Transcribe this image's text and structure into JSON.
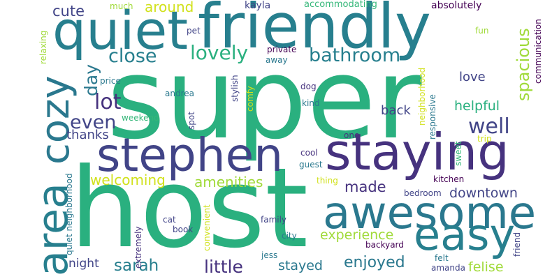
{
  "palette": {
    "background": "#ffffff",
    "green": "#2ab07f",
    "teal": "#277f8e",
    "navy": "#414487",
    "blue": "#2a788e",
    "indigo": "#46327e",
    "lime": "#a0da39",
    "yellow": "#d1e11c",
    "mint": "#35b779",
    "dark": "#440154"
  },
  "words": {
    "super": "super",
    "host": "host",
    "friendly": "friendly",
    "quiet": "quiet",
    "stephen": "stephen",
    "staying": "staying",
    "awesome": "awesome",
    "area": "area",
    "cozy": "cozy",
    "easy": "easy",
    "lovely": "lovely",
    "bathroom": "bathroom",
    "close": "close",
    "lot": "lot",
    "even": "even",
    "well": "well",
    "spacious": "spacious",
    "day": "day",
    "cute": "cute",
    "around": "around",
    "made": "made",
    "amenities": "amenities",
    "welcoming": "welcoming",
    "downtown": "downtown",
    "enjoyed": "enjoyed",
    "sarah": "sarah",
    "little": "little",
    "stayed": "stayed",
    "experience": "experience",
    "felise": "felise",
    "helpful": "helpful",
    "back": "back",
    "love": "love",
    "thanks": "thanks",
    "night": "night",
    "kayla": "kayla",
    "accommodating": "accommodating",
    "absolutely": "absolutely",
    "much": "much",
    "relaxing": "relaxing",
    "pet": "pet",
    "fun": "fun",
    "private": "private",
    "away": "away",
    "stylish": "stylish",
    "price": "price",
    "neighborhood": "neighborhood",
    "communication": "communication",
    "andrea": "andrea",
    "dog": "dog",
    "kind": "kind",
    "comfy": "comfy",
    "responsive": "responsive",
    "weekend": "weekend",
    "spot": "spot",
    "one": "one",
    "trip": "trip",
    "sweet": "sweet",
    "cool": "cool",
    "guest": "guest",
    "thing": "thing",
    "kitchen": "kitchen",
    "quiet_neighborhood": "quiet neighborhood",
    "bedroom": "bedroom",
    "cat": "cat",
    "book": "book",
    "family": "family",
    "convenient": "convenient",
    "extremely": "extremely",
    "city": "city",
    "backyard": "backyard",
    "jess": "jess",
    "friend": "friend",
    "amanda": "amanda",
    "felt": "felt"
  }
}
